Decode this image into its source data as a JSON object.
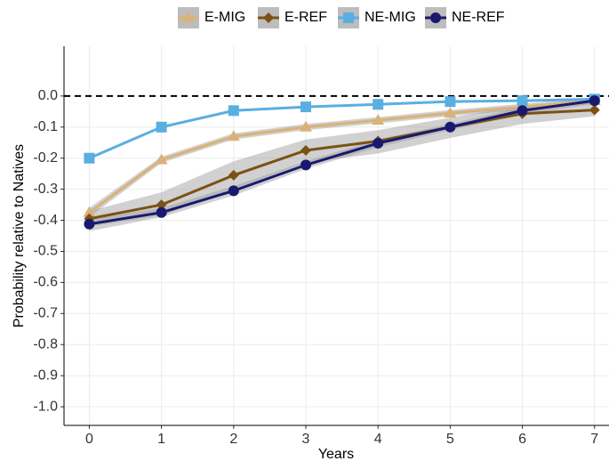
{
  "chart_data": {
    "type": "line",
    "x_label": "Years",
    "y_label": "Probability relative to Natives",
    "x": [
      0,
      1,
      2,
      3,
      4,
      5,
      6,
      7
    ],
    "series": [
      {
        "name": "E-MIG",
        "color": "#d9b27a",
        "marker": "triangle",
        "values": [
          -0.375,
          -0.205,
          -0.13,
          -0.1,
          -0.078,
          -0.055,
          -0.035,
          -0.015
        ],
        "lower": [
          -0.39,
          -0.215,
          -0.14,
          -0.11,
          -0.088,
          -0.065,
          -0.045,
          -0.025
        ],
        "upper": [
          -0.36,
          -0.195,
          -0.12,
          -0.09,
          -0.068,
          -0.045,
          -0.025,
          -0.005
        ]
      },
      {
        "name": "E-REF",
        "color": "#7b5214",
        "marker": "diamond",
        "values": [
          -0.395,
          -0.35,
          -0.255,
          -0.175,
          -0.145,
          -0.1,
          -0.057,
          -0.045
        ],
        "lower": [
          -0.42,
          -0.385,
          -0.3,
          -0.215,
          -0.185,
          -0.135,
          -0.09,
          -0.065
        ],
        "upper": [
          -0.37,
          -0.31,
          -0.21,
          -0.14,
          -0.11,
          -0.07,
          -0.03,
          -0.02
        ]
      },
      {
        "name": "NE-MIG",
        "color": "#5aafe0",
        "marker": "square",
        "values": [
          -0.2,
          -0.1,
          -0.047,
          -0.035,
          -0.027,
          -0.018,
          -0.015,
          -0.01
        ]
      },
      {
        "name": "NE-REF",
        "color": "#191970",
        "marker": "circle",
        "values": [
          -0.412,
          -0.375,
          -0.305,
          -0.222,
          -0.152,
          -0.1,
          -0.047,
          -0.015
        ],
        "lower": [
          -0.435,
          -0.39,
          -0.32,
          -0.235,
          -0.165,
          -0.11,
          -0.06,
          -0.025
        ],
        "upper": [
          -0.395,
          -0.36,
          -0.29,
          -0.21,
          -0.14,
          -0.09,
          -0.035,
          -0.005
        ]
      }
    ],
    "xlim": [
      -0.35,
      7.2
    ],
    "ylim": [
      -1.06,
      0.16
    ],
    "xticks": [
      0,
      1,
      2,
      3,
      4,
      5,
      6,
      7
    ],
    "yticks": [
      {
        "value": 0,
        "label": "0.0"
      },
      -0.1,
      -0.2,
      -0.3,
      -0.4,
      -0.5,
      -0.6,
      -0.7,
      -0.8,
      -0.9,
      {
        "value": -1,
        "label": "-1.0"
      }
    ],
    "hline": 0,
    "grid": true,
    "legend": "top"
  }
}
